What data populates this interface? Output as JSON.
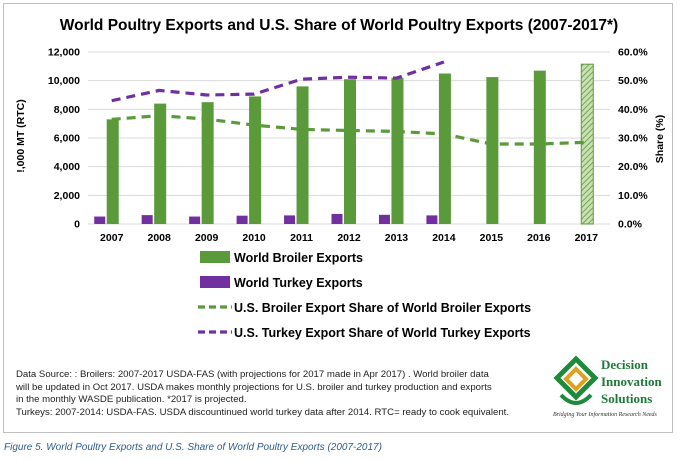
{
  "chart_data": {
    "type": "bar",
    "title": "World Poultry Exports and U.S. Share of World Poultry Exports (2007-2017*)",
    "categories": [
      "2007",
      "2008",
      "2009",
      "2010",
      "2011",
      "2012",
      "2013",
      "2014",
      "2015",
      "2016",
      "2017"
    ],
    "ylabel_left": "!,000 MT (RTC)",
    "ylabel_right": "Share (%)",
    "ylim_left": [
      0,
      12000
    ],
    "ylim_right": [
      0,
      60
    ],
    "left_ticks": [
      "0",
      "2,000",
      "4,000",
      "6,000",
      "8,000",
      "10,000",
      "12,000"
    ],
    "right_ticks": [
      "0.0%",
      "10.0%",
      "20.0%",
      "30.0%",
      "40.0%",
      "50.0%",
      "60.0%"
    ],
    "grid": true,
    "legend_position": "bottom",
    "series": [
      {
        "name": "World Broiler Exports",
        "type": "bar",
        "axis": "left",
        "values": [
          7300,
          8400,
          8500,
          8900,
          9600,
          10100,
          10200,
          10500,
          10250,
          10700,
          11150
        ],
        "projected_last": true
      },
      {
        "name": "World Turkey Exports",
        "type": "bar",
        "axis": "left",
        "values": [
          520,
          620,
          520,
          580,
          600,
          700,
          640,
          600,
          null,
          null,
          null
        ]
      },
      {
        "name": "U.S. Broiler Export Share of World Broiler Exports",
        "type": "line",
        "style": "dashed",
        "axis": "right",
        "values": [
          36.5,
          37.8,
          36.6,
          34.5,
          33.0,
          32.6,
          32.3,
          31.4,
          27.9,
          27.9,
          28.5
        ]
      },
      {
        "name": "U.S. Turkey Export Share of World Turkey Exports",
        "type": "line",
        "style": "dashed",
        "axis": "right",
        "values": [
          43.0,
          46.6,
          45.0,
          45.3,
          50.5,
          51.2,
          50.9,
          56.5,
          null,
          null,
          null
        ]
      }
    ],
    "colors": {
      "broiler": "#5a9a3a",
      "turkey": "#7030a0",
      "grid": "#d9d9d9",
      "axis_text": "#000000"
    }
  },
  "notes": {
    "line1": "Data Source: :  Broilers: 2007-2017 USDA-FAS (with projections for 2017 made in Apr 2017) . World broiler data",
    "line2": "will be updated in Oct 2017. USDA makes monthly projections for U.S. broiler and turkey production and exports",
    "line3": "in the monthly WASDE publication. *2017 is projected.",
    "line4": "Turkeys: 2007-2014: USDA-FAS. USDA discountinued world turkey data after 2014. RTC= ready to cook equivalent."
  },
  "logo": {
    "word1": "Decision",
    "word2": "Innovation",
    "word3": "Solutions",
    "tagline": "Bridging Your Information Research Needs"
  },
  "caption": "Figure 5.  World Poultry Exports and U.S. Share of World Poultry Exports (2007-2017)"
}
